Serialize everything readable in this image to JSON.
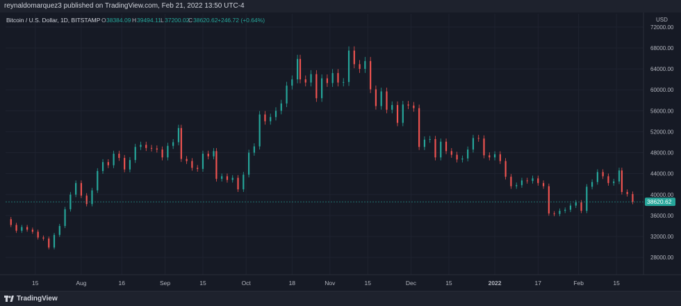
{
  "header": {
    "published": "reynaldomarquez3 published on TradingView.com, Feb 21, 2022 13:50 UTC-4"
  },
  "legend": {
    "symbol": "Bitcoin / U.S. Dollar, 1D, BITSTAMP",
    "o_label": "O",
    "o_value": "38384.09",
    "h_label": "H",
    "h_value": "39494.11",
    "l_label": "L",
    "l_value": "37200.02",
    "c_label": "C",
    "c_value": "38620.62",
    "change": "+246.72 (+0.64%)"
  },
  "footer": {
    "brand": "TradingView"
  },
  "colors": {
    "up": "#26a69a",
    "down": "#ef5350",
    "background": "#161a25",
    "grid": "#1f2330",
    "text": "#b2b5be",
    "last_price_bg": "#26a69a"
  },
  "chart_data": {
    "type": "candlestick",
    "title": "",
    "currency_label": "USD",
    "y_ticks": [
      28000,
      32000,
      36000,
      40000,
      44000,
      48000,
      52000,
      56000,
      60000,
      64000,
      68000,
      72000
    ],
    "y_tick_labels": [
      "28000.00",
      "32000.00",
      "36000.00",
      "40000.00",
      "44000.00",
      "48000.00",
      "52000.00",
      "56000.00",
      "60000.00",
      "64000.00",
      "68000.00",
      "72000.00"
    ],
    "ylim": [
      24700,
      74500
    ],
    "x_ticks": [
      {
        "label": "15",
        "date": "2021-07-15"
      },
      {
        "label": "Aug",
        "date": "2021-08-01"
      },
      {
        "label": "16",
        "date": "2021-08-16"
      },
      {
        "label": "Sep",
        "date": "2021-09-01"
      },
      {
        "label": "15",
        "date": "2021-09-15"
      },
      {
        "label": "Oct",
        "date": "2021-10-01"
      },
      {
        "label": "18",
        "date": "2021-10-18"
      },
      {
        "label": "Nov",
        "date": "2021-11-01"
      },
      {
        "label": "15",
        "date": "2021-11-15"
      },
      {
        "label": "Dec",
        "date": "2021-12-01"
      },
      {
        "label": "15",
        "date": "2021-12-15"
      },
      {
        "label": "2022",
        "date": "2022-01-01"
      },
      {
        "label": "17",
        "date": "2022-01-17"
      },
      {
        "label": "Feb",
        "date": "2022-02-01"
      },
      {
        "label": "15",
        "date": "2022-02-15"
      }
    ],
    "x_start": "2021-07-04",
    "x_end": "2022-02-25",
    "last_price": 38620.62,
    "last_price_label": "38620.62",
    "close_series": [
      {
        "date": "2021-07-04",
        "close": 35300
      },
      {
        "date": "2021-07-06",
        "close": 34200
      },
      {
        "date": "2021-07-08",
        "close": 33100
      },
      {
        "date": "2021-07-10",
        "close": 33800
      },
      {
        "date": "2021-07-12",
        "close": 33300
      },
      {
        "date": "2021-07-14",
        "close": 32900
      },
      {
        "date": "2021-07-16",
        "close": 31800
      },
      {
        "date": "2021-07-18",
        "close": 31600
      },
      {
        "date": "2021-07-20",
        "close": 29900
      },
      {
        "date": "2021-07-22",
        "close": 32300
      },
      {
        "date": "2021-07-24",
        "close": 34000
      },
      {
        "date": "2021-07-26",
        "close": 37200
      },
      {
        "date": "2021-07-28",
        "close": 40000
      },
      {
        "date": "2021-07-30",
        "close": 42200
      },
      {
        "date": "2021-08-01",
        "close": 39800
      },
      {
        "date": "2021-08-03",
        "close": 38200
      },
      {
        "date": "2021-08-05",
        "close": 40800
      },
      {
        "date": "2021-08-07",
        "close": 44500
      },
      {
        "date": "2021-08-09",
        "close": 46200
      },
      {
        "date": "2021-08-11",
        "close": 45600
      },
      {
        "date": "2021-08-13",
        "close": 47800
      },
      {
        "date": "2021-08-15",
        "close": 47000
      },
      {
        "date": "2021-08-17",
        "close": 44800
      },
      {
        "date": "2021-08-19",
        "close": 46600
      },
      {
        "date": "2021-08-21",
        "close": 49100
      },
      {
        "date": "2021-08-23",
        "close": 49500
      },
      {
        "date": "2021-08-25",
        "close": 48900
      },
      {
        "date": "2021-08-27",
        "close": 48800
      },
      {
        "date": "2021-08-29",
        "close": 48600
      },
      {
        "date": "2021-08-31",
        "close": 47100
      },
      {
        "date": "2021-09-02",
        "close": 49300
      },
      {
        "date": "2021-09-04",
        "close": 50000
      },
      {
        "date": "2021-09-06",
        "close": 52700
      },
      {
        "date": "2021-09-07",
        "close": 46800
      },
      {
        "date": "2021-09-09",
        "close": 46400
      },
      {
        "date": "2021-09-11",
        "close": 45100
      },
      {
        "date": "2021-09-13",
        "close": 44900
      },
      {
        "date": "2021-09-15",
        "close": 47800
      },
      {
        "date": "2021-09-17",
        "close": 47300
      },
      {
        "date": "2021-09-19",
        "close": 48300
      },
      {
        "date": "2021-09-20",
        "close": 43000
      },
      {
        "date": "2021-09-22",
        "close": 43500
      },
      {
        "date": "2021-09-24",
        "close": 42800
      },
      {
        "date": "2021-09-26",
        "close": 43200
      },
      {
        "date": "2021-09-28",
        "close": 41000
      },
      {
        "date": "2021-09-30",
        "close": 43800
      },
      {
        "date": "2021-10-02",
        "close": 48000
      },
      {
        "date": "2021-10-04",
        "close": 49200
      },
      {
        "date": "2021-10-06",
        "close": 55300
      },
      {
        "date": "2021-10-08",
        "close": 54000
      },
      {
        "date": "2021-10-10",
        "close": 54800
      },
      {
        "date": "2021-10-12",
        "close": 56000
      },
      {
        "date": "2021-10-14",
        "close": 57400
      },
      {
        "date": "2021-10-16",
        "close": 60800
      },
      {
        "date": "2021-10-18",
        "close": 62000
      },
      {
        "date": "2021-10-20",
        "close": 65900
      },
      {
        "date": "2021-10-21",
        "close": 62000
      },
      {
        "date": "2021-10-23",
        "close": 61400
      },
      {
        "date": "2021-10-25",
        "close": 63000
      },
      {
        "date": "2021-10-27",
        "close": 58400
      },
      {
        "date": "2021-10-29",
        "close": 62200
      },
      {
        "date": "2021-10-31",
        "close": 61300
      },
      {
        "date": "2021-11-02",
        "close": 63200
      },
      {
        "date": "2021-11-04",
        "close": 61400
      },
      {
        "date": "2021-11-06",
        "close": 61500
      },
      {
        "date": "2021-11-08",
        "close": 67500
      },
      {
        "date": "2021-11-10",
        "close": 64900
      },
      {
        "date": "2021-11-12",
        "close": 64000
      },
      {
        "date": "2021-11-14",
        "close": 65500
      },
      {
        "date": "2021-11-16",
        "close": 60100
      },
      {
        "date": "2021-11-18",
        "close": 56900
      },
      {
        "date": "2021-11-20",
        "close": 59700
      },
      {
        "date": "2021-11-22",
        "close": 56200
      },
      {
        "date": "2021-11-24",
        "close": 57100
      },
      {
        "date": "2021-11-26",
        "close": 53700
      },
      {
        "date": "2021-11-28",
        "close": 57200
      },
      {
        "date": "2021-11-30",
        "close": 57000
      },
      {
        "date": "2021-12-02",
        "close": 56500
      },
      {
        "date": "2021-12-04",
        "close": 49100
      },
      {
        "date": "2021-12-06",
        "close": 50500
      },
      {
        "date": "2021-12-08",
        "close": 50600
      },
      {
        "date": "2021-12-10",
        "close": 47100
      },
      {
        "date": "2021-12-12",
        "close": 50100
      },
      {
        "date": "2021-12-14",
        "close": 48300
      },
      {
        "date": "2021-12-16",
        "close": 47600
      },
      {
        "date": "2021-12-18",
        "close": 46700
      },
      {
        "date": "2021-12-20",
        "close": 46900
      },
      {
        "date": "2021-12-22",
        "close": 48600
      },
      {
        "date": "2021-12-24",
        "close": 50800
      },
      {
        "date": "2021-12-26",
        "close": 50700
      },
      {
        "date": "2021-12-28",
        "close": 47500
      },
      {
        "date": "2021-12-30",
        "close": 47100
      },
      {
        "date": "2022-01-01",
        "close": 47700
      },
      {
        "date": "2022-01-03",
        "close": 46400
      },
      {
        "date": "2022-01-05",
        "close": 43400
      },
      {
        "date": "2022-01-07",
        "close": 41600
      },
      {
        "date": "2022-01-09",
        "close": 41800
      },
      {
        "date": "2022-01-11",
        "close": 42700
      },
      {
        "date": "2022-01-13",
        "close": 42600
      },
      {
        "date": "2022-01-15",
        "close": 43100
      },
      {
        "date": "2022-01-17",
        "close": 42200
      },
      {
        "date": "2022-01-19",
        "close": 41600
      },
      {
        "date": "2022-01-21",
        "close": 36400
      },
      {
        "date": "2022-01-23",
        "close": 36300
      },
      {
        "date": "2022-01-25",
        "close": 36900
      },
      {
        "date": "2022-01-27",
        "close": 37100
      },
      {
        "date": "2022-01-29",
        "close": 37900
      },
      {
        "date": "2022-01-31",
        "close": 38500
      },
      {
        "date": "2022-02-02",
        "close": 36900
      },
      {
        "date": "2022-02-04",
        "close": 41500
      },
      {
        "date": "2022-02-06",
        "close": 42400
      },
      {
        "date": "2022-02-08",
        "close": 44300
      },
      {
        "date": "2022-02-10",
        "close": 43500
      },
      {
        "date": "2022-02-12",
        "close": 42200
      },
      {
        "date": "2022-02-14",
        "close": 42500
      },
      {
        "date": "2022-02-16",
        "close": 44600
      },
      {
        "date": "2022-02-17",
        "close": 40500
      },
      {
        "date": "2022-02-19",
        "close": 40100
      },
      {
        "date": "2022-02-21",
        "close": 38620
      }
    ]
  }
}
